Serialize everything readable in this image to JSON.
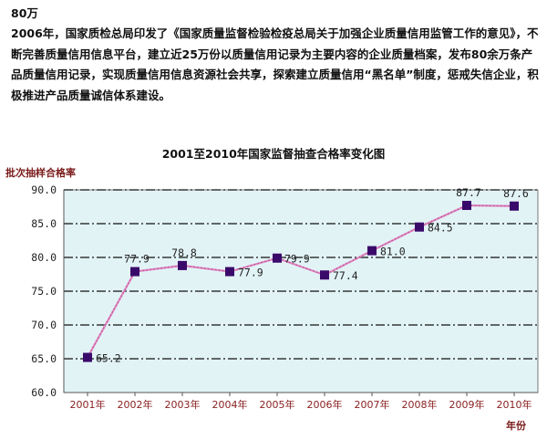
{
  "text": {
    "heading": "80万",
    "paragraph": "2006年，国家质检总局印发了《国家质量监督检验检疫总局关于加强企业质量信用监管工作的意见》，不断完善质量信用信息平台，建立近25万份以质量信用记录为主要内容的企业质量档案，发布80余万条产品质量信用记录，实现质量信用信息资源社会共享，探索建立质量信用“黑名单”制度，惩戒失信企业，积极推进产品质量诚信体系建设。"
  },
  "chart_data": {
    "type": "line",
    "title": "2001至2010年国家监督抽查合格率变化图",
    "ylabel": "批次抽样合格率",
    "xlabel": "年份",
    "categories": [
      "2001年",
      "2002年",
      "2003年",
      "2004年",
      "2005年",
      "2006年",
      "2007年",
      "2008年",
      "2009年",
      "2010年"
    ],
    "values": [
      65.2,
      77.9,
      78.8,
      77.9,
      79.9,
      77.4,
      81.0,
      84.5,
      87.7,
      87.6
    ],
    "labels": [
      "65.2",
      "77.9",
      "78.8",
      "77.9",
      "79.9",
      "77.4",
      "81.0",
      "84.5",
      "87.7",
      "87.6"
    ],
    "yticks": [
      "60.0",
      "65.0",
      "70.0",
      "75.0",
      "80.0",
      "85.0",
      "90.0"
    ],
    "ylim": [
      60,
      90
    ],
    "grid": true,
    "colors": {
      "plot_background": "#e2f3f6",
      "line": "#e087c0",
      "marker": "#3a0a6a",
      "grid": "#111111",
      "axis_text": "#8a2020"
    }
  }
}
